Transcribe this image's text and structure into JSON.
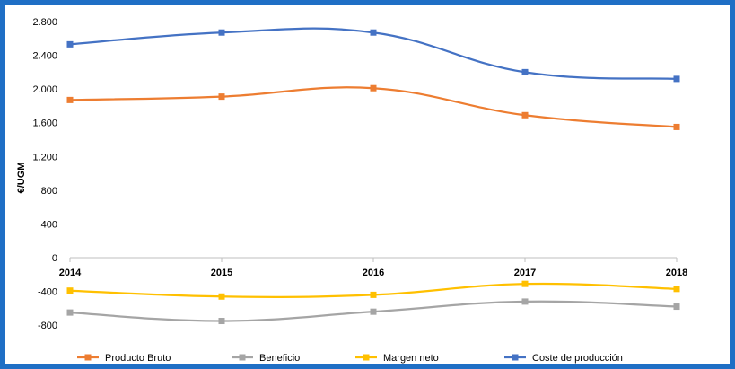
{
  "chart_data": {
    "type": "line",
    "title": "",
    "xlabel": "",
    "ylabel": "€/UGM",
    "x": [
      "2014",
      "2015",
      "2016",
      "2017",
      "2018"
    ],
    "ylim": [
      -1000,
      2800
    ],
    "yticks": [
      {
        "value": 2800,
        "label": "2.800"
      },
      {
        "value": 2400,
        "label": "2.400"
      },
      {
        "value": 2000,
        "label": "2.000"
      },
      {
        "value": 1600,
        "label": "1.600"
      },
      {
        "value": 1200,
        "label": "1.200"
      },
      {
        "value": 800,
        "label": "800"
      },
      {
        "value": 400,
        "label": "400"
      },
      {
        "value": 0,
        "label": "0"
      },
      {
        "value": -400,
        "label": "-400"
      },
      {
        "value": -800,
        "label": "-800"
      }
    ],
    "grid": false,
    "legend_position": "bottom",
    "series": [
      {
        "name": "Producto Bruto",
        "color": "#ed7d31",
        "values": [
          1870,
          1910,
          2010,
          1690,
          1550
        ]
      },
      {
        "name": "Beneficio",
        "color": "#a5a5a5",
        "values": [
          -650,
          -750,
          -640,
          -520,
          -580
        ]
      },
      {
        "name": "Margen neto",
        "color": "#ffc000",
        "values": [
          -390,
          -460,
          -440,
          -310,
          -370
        ]
      },
      {
        "name": "Coste de producción",
        "color": "#4472c4",
        "values": [
          2530,
          2670,
          2670,
          2200,
          2120
        ]
      }
    ]
  }
}
